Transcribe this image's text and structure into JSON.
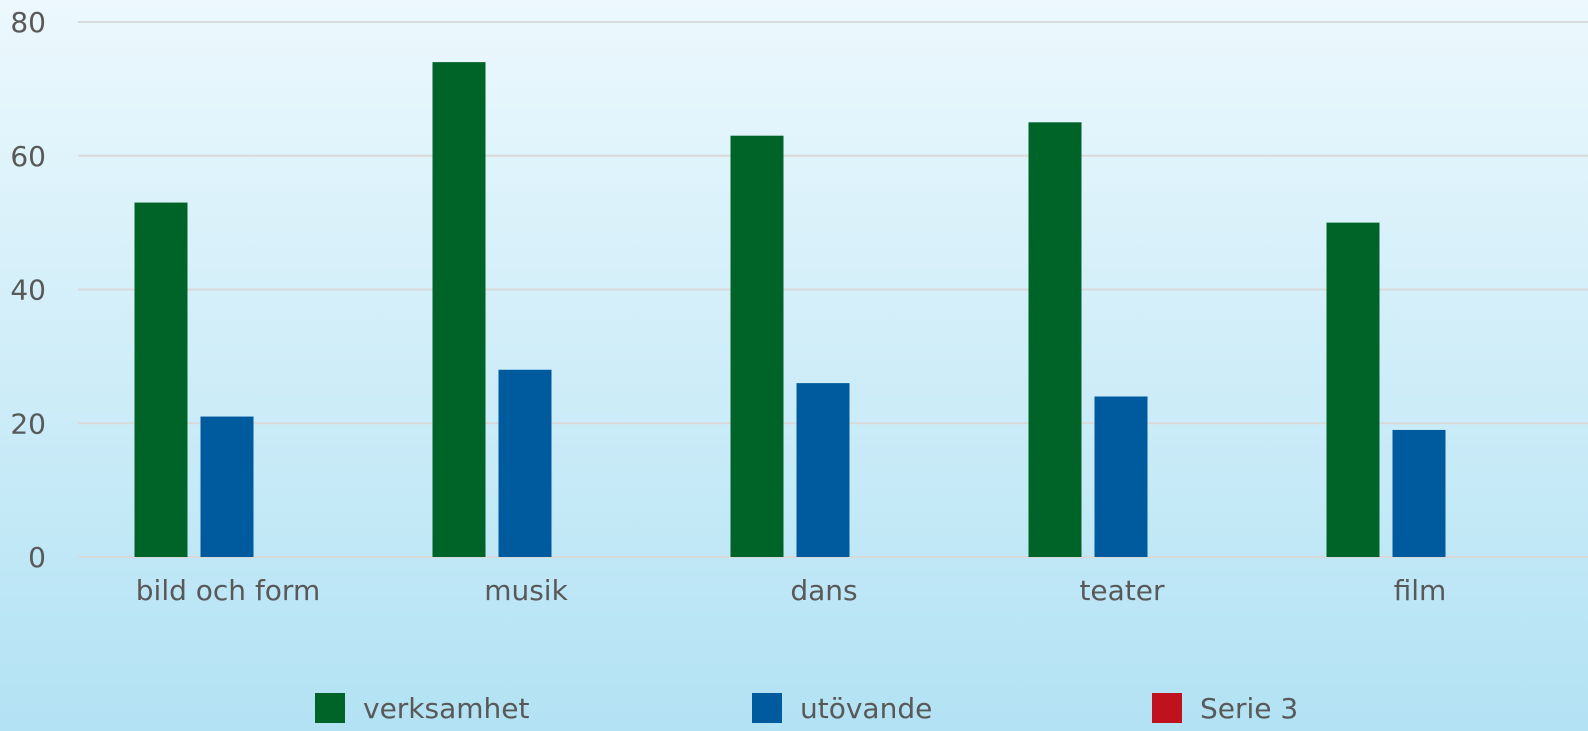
{
  "chart_data": {
    "type": "bar",
    "categories": [
      "bild och form",
      "musik",
      "dans",
      "teater",
      "film"
    ],
    "series": [
      {
        "name": "verksamhet",
        "color": "#006428",
        "values": [
          53,
          74,
          63,
          65,
          50
        ]
      },
      {
        "name": "utövande",
        "color": "#005a9e",
        "values": [
          21,
          28,
          26,
          24,
          19
        ]
      },
      {
        "name": "Serie 3",
        "color": "#c0111f",
        "values": [
          null,
          null,
          null,
          null,
          null
        ]
      }
    ],
    "ylim": [
      0,
      80
    ],
    "yticks": [
      0,
      20,
      40,
      60,
      80
    ],
    "grid": true,
    "legend": "bottom"
  }
}
